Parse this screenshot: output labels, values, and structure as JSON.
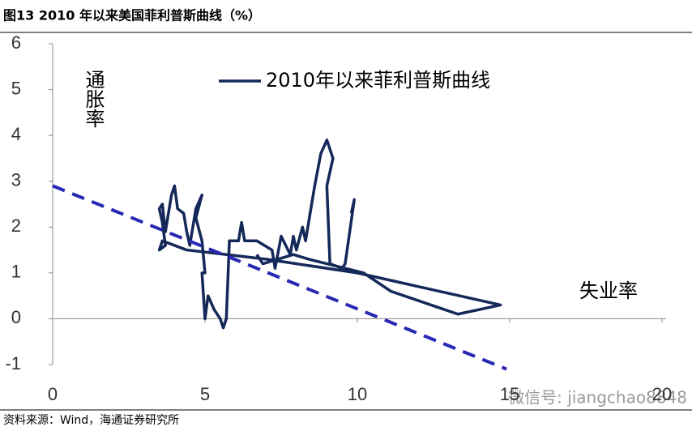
{
  "chart_data": {
    "type": "line",
    "title": "图13 2010 年以来美国菲利普斯曲线（%）",
    "y_label": "通胀率",
    "x_label": "失业率",
    "source": "资料来源：Wind，海通证券研究所",
    "watermark": "微信号: jiangchao8848",
    "xlim": [
      0,
      20
    ],
    "xticks": [
      0,
      5,
      10,
      15,
      20
    ],
    "ylim": [
      -1,
      6
    ],
    "yticks": [
      -1,
      0,
      1,
      2,
      3,
      4,
      5,
      6
    ],
    "legend": "top",
    "series": [
      {
        "name": "2010年以来菲利普斯曲线",
        "color": "#14285a",
        "dash": false,
        "x": [
          9.8,
          9.9,
          9.6,
          9.5,
          9.1,
          9.0,
          9.2,
          9.0,
          8.8,
          8.6,
          8.3,
          8.2,
          8.0,
          7.9,
          7.8,
          7.5,
          7.3,
          7.2,
          6.7,
          6.3,
          6.2,
          6.1,
          5.8,
          5.7,
          5.6,
          5.5,
          5.3,
          5.1,
          5.0,
          4.9,
          5.0,
          4.9,
          4.7,
          4.9,
          4.7,
          4.5,
          4.4,
          4.3,
          4.1,
          4.0,
          3.9,
          3.8,
          3.7,
          3.6,
          3.5,
          3.6,
          3.7,
          3.5,
          3.6,
          4.4,
          7.0,
          10.0,
          14.7,
          13.3,
          11.1,
          10.2,
          8.4,
          7.9,
          6.9,
          6.7
        ],
        "values": [
          2.3,
          2.6,
          1.2,
          1.1,
          1.2,
          2.9,
          3.5,
          3.9,
          3.6,
          2.9,
          1.7,
          2.0,
          1.5,
          1.8,
          1.4,
          1.8,
          1.1,
          1.5,
          1.7,
          1.7,
          2.1,
          1.7,
          1.7,
          0.0,
          -0.2,
          0.0,
          0.2,
          0.5,
          0.0,
          1.0,
          1.0,
          1.7,
          2.2,
          2.7,
          2.4,
          1.6,
          1.9,
          2.3,
          2.4,
          2.9,
          2.7,
          2.3,
          1.9,
          2.5,
          2.4,
          2.1,
          1.6,
          1.5,
          1.7,
          1.5,
          1.3,
          1.0,
          0.3,
          0.1,
          0.6,
          1.0,
          1.3,
          1.4,
          1.2,
          1.4
        ]
      },
      {
        "color": "#2828b4",
        "dash": true,
        "x": [
          0,
          14.9
        ],
        "values": [
          2.9,
          -1.1
        ]
      }
    ]
  }
}
